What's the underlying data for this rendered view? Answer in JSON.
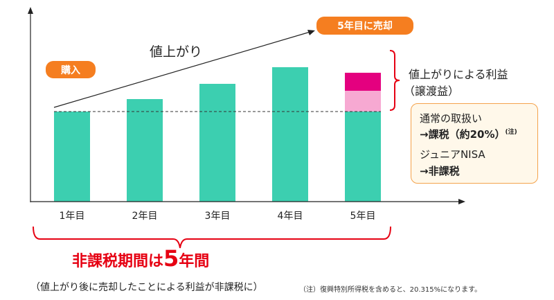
{
  "colors": {
    "bar": "#3ccfb0",
    "gain": "#f7a9d2",
    "tax": "#e4007f",
    "accent": "#f57e20",
    "red": "#e60012",
    "axis": "#222222",
    "note_border": "#f4a24b",
    "note_bg": "#fff8ea"
  },
  "chart_data": {
    "type": "bar",
    "categories": [
      "1年目",
      "2年目",
      "3年目",
      "4年目",
      "5年目"
    ],
    "values": [
      130,
      148,
      170,
      194,
      130
    ],
    "stacked_gain": {
      "category": "5年目",
      "value": 56
    },
    "tax_segment": {
      "category": "5年目",
      "value": 26
    },
    "baseline": 130,
    "ylim": [
      0,
      270
    ],
    "grid": false,
    "trend_label": "値上がり",
    "tax_label": "課税"
  },
  "labels": {
    "buy": "購入",
    "sell": "5年目に売却",
    "gain_line1": "値上がりによる利益",
    "gain_line2": "（譲渡益）",
    "note": {
      "l1": "通常の取扱い",
      "l2_arrow": "→",
      "l2_text": "課税（約20%）",
      "l2_sup": "(注)",
      "l3": "ジュニアNISA",
      "l4_arrow": "→",
      "l4_text": "非課税"
    },
    "period_prefix": "非課税期間は",
    "period_number": "5",
    "period_suffix": "年間",
    "period_caption": "（値上がり後に売却したことによる利益が非課税に）",
    "footnote": "（注）復興特別所得税を含めると、20.315%になります。"
  }
}
